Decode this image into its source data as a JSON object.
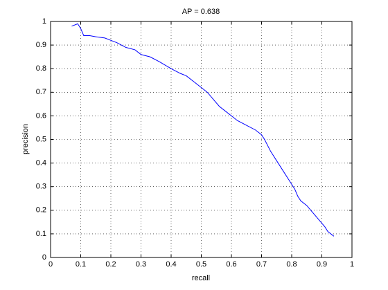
{
  "chart_data": {
    "type": "line",
    "title": "AP = 0.638",
    "x_label": "recall",
    "y_label": "precision",
    "x": [
      0.07,
      0.09,
      0.1,
      0.11,
      0.13,
      0.15,
      0.18,
      0.2,
      0.22,
      0.25,
      0.28,
      0.3,
      0.33,
      0.36,
      0.4,
      0.43,
      0.45,
      0.48,
      0.5,
      0.52,
      0.54,
      0.56,
      0.58,
      0.6,
      0.62,
      0.65,
      0.68,
      0.7,
      0.71,
      0.73,
      0.75,
      0.77,
      0.79,
      0.81,
      0.82,
      0.83,
      0.85,
      0.87,
      0.89,
      0.91,
      0.92,
      0.94
    ],
    "series": [
      {
        "color": "#0000ff",
        "values": [
          0.98,
          0.99,
          0.97,
          0.94,
          0.94,
          0.935,
          0.93,
          0.92,
          0.91,
          0.89,
          0.88,
          0.86,
          0.85,
          0.83,
          0.8,
          0.78,
          0.77,
          0.74,
          0.72,
          0.7,
          0.67,
          0.64,
          0.62,
          0.6,
          0.58,
          0.56,
          0.54,
          0.52,
          0.5,
          0.45,
          0.41,
          0.37,
          0.33,
          0.29,
          0.26,
          0.24,
          0.22,
          0.19,
          0.16,
          0.13,
          0.11,
          0.09
        ]
      }
    ],
    "xlim": [
      0,
      1
    ],
    "ylim": [
      0,
      1
    ],
    "xticks": [
      0,
      0.1,
      0.2,
      0.3,
      0.4,
      0.5,
      0.6,
      0.7,
      0.8,
      0.9,
      1
    ],
    "yticks": [
      0,
      0.1,
      0.2,
      0.3,
      0.4,
      0.5,
      0.6,
      0.7,
      0.8,
      0.9,
      1
    ],
    "grid": true
  }
}
